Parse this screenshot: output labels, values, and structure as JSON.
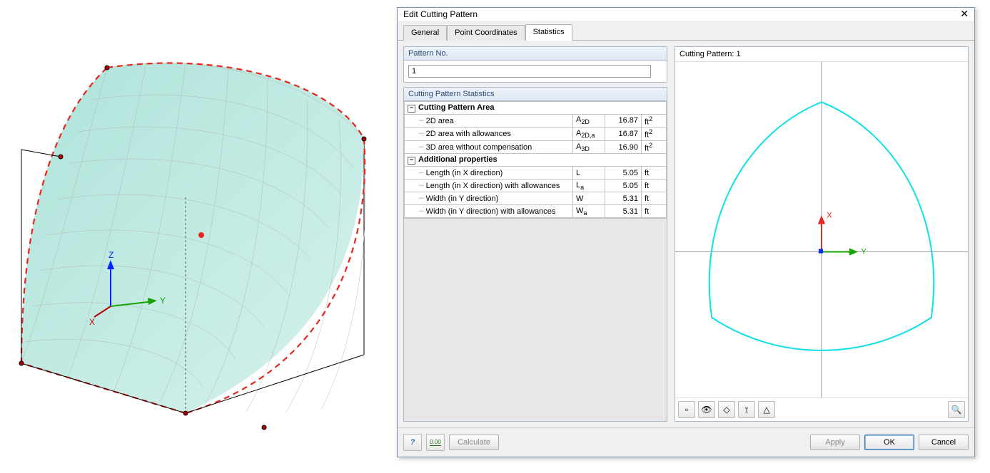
{
  "scene": {
    "mesh_fill": "#aee3da",
    "mesh_fill2": "#c6ece4",
    "mesh_stroke": "#b6b6b6",
    "box_stroke": "#000000",
    "dash_stroke": "#e6261f",
    "z_color": "#0024ff",
    "y_color": "#16a500",
    "x_color": "#c00000",
    "z_label": "Z",
    "y_label": "Y",
    "x_label": "X",
    "dot_color": "#e6261f"
  },
  "dialog": {
    "title": "Edit Cutting Pattern",
    "tabs": [
      "General",
      "Point Coordinates",
      "Statistics"
    ],
    "active_tab": 2,
    "pattern_no": {
      "label": "Pattern No.",
      "value": "1"
    },
    "stats": {
      "header": "Cutting Pattern Statistics",
      "groups": [
        {
          "label": "Cutting Pattern Area",
          "rows": [
            {
              "label": "2D area",
              "sym": "A",
              "sub": "2D",
              "val": "16.87",
              "unit": "ft",
              "sup": "2"
            },
            {
              "label": "2D area with allowances",
              "sym": "A",
              "sub": "2D,a",
              "val": "16.87",
              "unit": "ft",
              "sup": "2"
            },
            {
              "label": "3D area without compensation",
              "sym": "A",
              "sub": "3D",
              "val": "16.90",
              "unit": "ft",
              "sup": "2"
            }
          ]
        },
        {
          "label": "Additional properties",
          "rows": [
            {
              "label": "Length (in X direction)",
              "sym": "L",
              "sub": "",
              "val": "5.05",
              "unit": "ft",
              "sup": ""
            },
            {
              "label": "Length (in X direction) with allowances",
              "sym": "L",
              "sub": "a",
              "val": "5.05",
              "unit": "ft",
              "sup": ""
            },
            {
              "label": "Width (in Y direction)",
              "sym": "W",
              "sub": "",
              "val": "5.31",
              "unit": "ft",
              "sup": ""
            },
            {
              "label": "Width (in Y direction) with allowances",
              "sym": "W",
              "sub": "a",
              "val": "5.31",
              "unit": "ft",
              "sup": ""
            }
          ]
        }
      ]
    },
    "preview": {
      "label": "Cutting Pattern: 1",
      "shape_stroke": "#14e0e6",
      "axis_x_color": "#e6261f",
      "axis_y_color": "#16a500",
      "axis_z_color": "#0030ff",
      "x_label": "X",
      "y_label": "Y",
      "grid_color": "#9c9c9c",
      "toolbar_glyphs": [
        "▫",
        "👁",
        "◇",
        "⟟",
        "△"
      ],
      "toolbar_last": "🔍"
    },
    "footer": {
      "help_glyph": "?",
      "units_glyph": "0.00",
      "calculate": "Calculate",
      "apply": "Apply",
      "ok": "OK",
      "cancel": "Cancel"
    }
  }
}
